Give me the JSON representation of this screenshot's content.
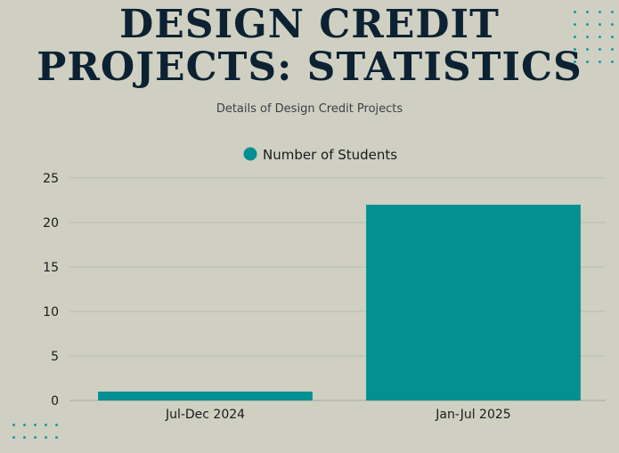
{
  "title": {
    "line1": "DESIGN CREDIT",
    "line2": "PROJECTS: STATISTICS"
  },
  "subtitle": "Details of Design Credit Projects",
  "colors": {
    "bar": "#048f93",
    "title": "#0c2233",
    "background": "#cfd0c2",
    "dots": "#1b9a9d"
  },
  "chart_data": {
    "type": "bar",
    "categories": [
      "Jul-Dec 2024",
      "Jan-Jul 2025"
    ],
    "series": [
      {
        "name": "Number of Students",
        "values": [
          1,
          22
        ]
      }
    ],
    "ylim": [
      0,
      25
    ],
    "yticks": [
      "0",
      "5",
      "10",
      "15",
      "20",
      "25"
    ],
    "grid": true,
    "legend": "top-center"
  }
}
